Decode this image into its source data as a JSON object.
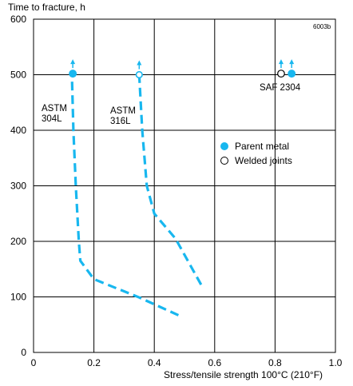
{
  "chart_data": {
    "type": "line",
    "ylabel": "Time to fracture, h",
    "xlabel": "Stress/tensile strength 100°C (210°F)",
    "figure_code": "6003b",
    "xlim": [
      0,
      1.0
    ],
    "ylim": [
      0,
      600
    ],
    "x_ticks": [
      "0",
      "0.2",
      "0.4",
      "0.6",
      "0.8",
      "1.0"
    ],
    "y_ticks": [
      "0",
      "100",
      "200",
      "300",
      "400",
      "500",
      "600"
    ],
    "grid": true,
    "series": [
      {
        "name": "ASTM 304L",
        "label_lines": [
          "ASTM",
          "304L"
        ],
        "style": "dashed",
        "points": [
          [
            0.48,
            67
          ],
          [
            0.35,
            99
          ],
          [
            0.2,
            132
          ],
          [
            0.155,
            165
          ],
          [
            0.15,
            200
          ],
          [
            0.14,
            300
          ],
          [
            0.132,
            400
          ],
          [
            0.127,
            500
          ]
        ],
        "marker": {
          "x": 0.13,
          "y": 502,
          "type": "parent"
        },
        "arrow": true
      },
      {
        "name": "ASTM 316L",
        "label_lines": [
          "ASTM",
          "316L"
        ],
        "style": "dashed",
        "points": [
          [
            0.555,
            122
          ],
          [
            0.47,
            205
          ],
          [
            0.4,
            250
          ],
          [
            0.375,
            300
          ],
          [
            0.36,
            400
          ],
          [
            0.35,
            500
          ]
        ],
        "marker": {
          "x": 0.35,
          "y": 500,
          "type": "welded_partial"
        },
        "arrow": true
      },
      {
        "name": "SAF 2304",
        "label_lines": [
          "SAF 2304"
        ],
        "points": [],
        "markers": [
          {
            "x": 0.82,
            "y": 502,
            "type": "welded"
          },
          {
            "x": 0.855,
            "y": 502,
            "type": "parent"
          }
        ],
        "arrow": true
      }
    ],
    "legend": {
      "placement": "center-right",
      "entries": [
        {
          "label": "Parent metal",
          "marker": "filled"
        },
        {
          "label": "Welded joints",
          "marker": "hollow"
        }
      ]
    },
    "colors": {
      "series": "#18b7ef",
      "grid": "#000000",
      "axis": "#000000",
      "text": "#000000"
    }
  }
}
